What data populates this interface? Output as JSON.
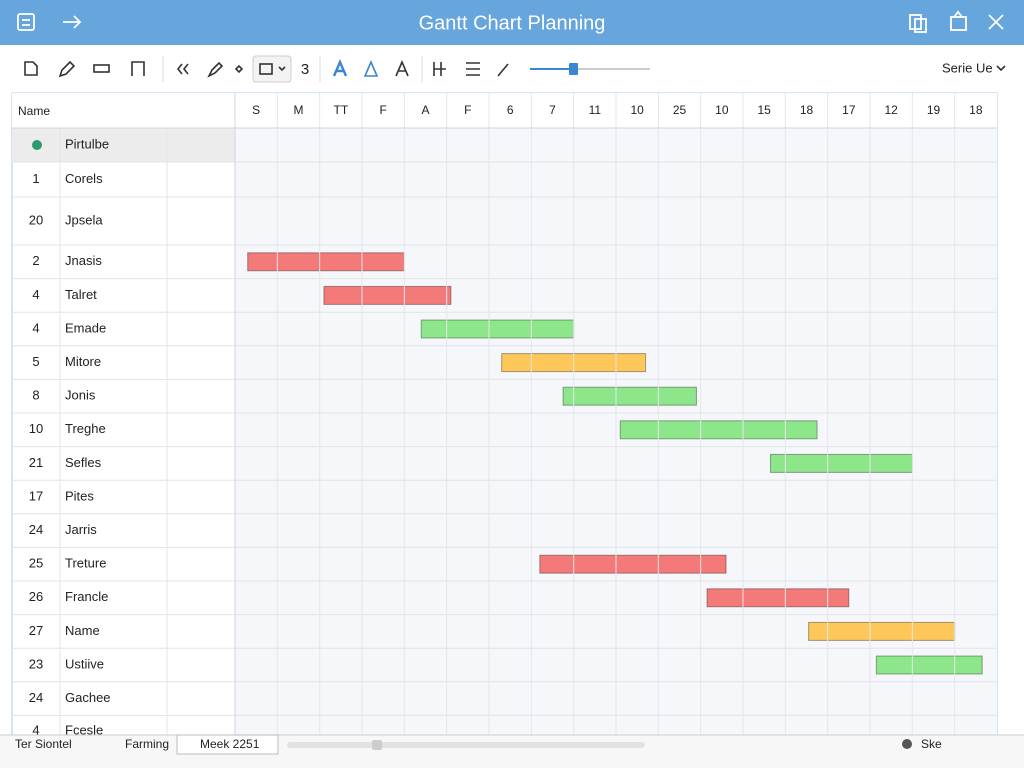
{
  "title": "Gantt Chart Planning",
  "toolbar": {
    "zoom_label": "3",
    "view_menu": "Serie Ue"
  },
  "table": {
    "name_header": "Name",
    "timeline_headers": [
      "S",
      "M",
      "TT",
      "F",
      "A",
      "F",
      "6",
      "7",
      "11",
      "10",
      "25",
      "10",
      "15",
      "18",
      "17",
      "12",
      "19",
      "18"
    ],
    "rows": [
      {
        "name": "Pirtulbe"
      },
      {
        "id": "1",
        "name": "Corels"
      },
      {
        "id": "20",
        "name": "Jpsela"
      },
      {
        "id": "2",
        "name": "Jnasis",
        "bar": {
          "start": 0.3,
          "end": 4.0,
          "color": "#f47a7a"
        }
      },
      {
        "id": "4",
        "name": "Talret",
        "bar": {
          "start": 2.1,
          "end": 5.1,
          "color": "#f47a7a"
        }
      },
      {
        "id": "4",
        "name": "Emade",
        "bar": {
          "start": 4.4,
          "end": 8.0,
          "color": "#8ee68a"
        }
      },
      {
        "id": "5",
        "name": "Mitore",
        "bar": {
          "start": 6.3,
          "end": 9.7,
          "color": "#fdc75a"
        }
      },
      {
        "id": "8",
        "name": "Jonis",
        "bar": {
          "start": 7.75,
          "end": 10.9,
          "color": "#8ee68a"
        }
      },
      {
        "id": "10",
        "name": "Treghe",
        "bar": {
          "start": 9.1,
          "end": 13.75,
          "color": "#8ee68a"
        }
      },
      {
        "id": "21",
        "name": "Sefles",
        "bar": {
          "start": 12.65,
          "end": 16.0,
          "color": "#8ee68a"
        }
      },
      {
        "id": "17",
        "name": "Pites"
      },
      {
        "id": "24",
        "name": "Jarris"
      },
      {
        "id": "25",
        "name": "Treture",
        "bar": {
          "start": 7.2,
          "end": 11.6,
          "color": "#f47a7a"
        }
      },
      {
        "id": "26",
        "name": "Francle",
        "bar": {
          "start": 11.15,
          "end": 14.5,
          "color": "#f47a7a"
        }
      },
      {
        "id": "27",
        "name": "Name",
        "bar": {
          "start": 13.55,
          "end": 17.0,
          "color": "#fdc75a"
        }
      },
      {
        "id": "23",
        "name": "Ustiive",
        "bar": {
          "start": 15.15,
          "end": 17.65,
          "color": "#8ee68a"
        }
      },
      {
        "id": "24",
        "name": "Gachee"
      },
      {
        "id": "4",
        "name": "Fcesle"
      }
    ]
  },
  "status_bar": {
    "left": "Ter Siontel",
    "mode": "Farming",
    "week": "Meek 2251",
    "right": "Ske"
  }
}
